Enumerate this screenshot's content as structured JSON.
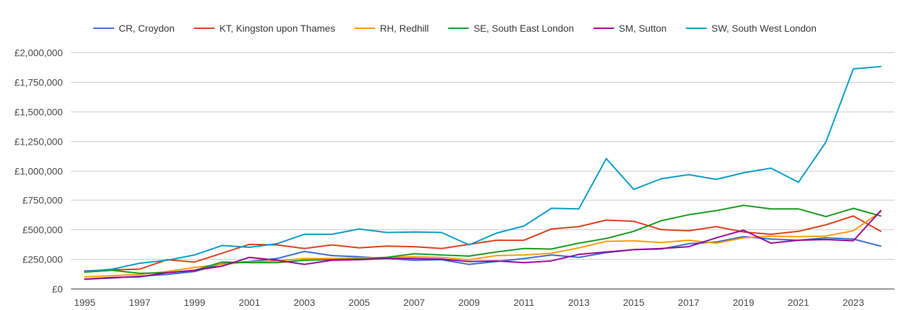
{
  "chart_data": {
    "type": "line",
    "title": "",
    "xlabel": "",
    "ylabel": "",
    "x": [
      1995,
      1996,
      1997,
      1998,
      1999,
      2000,
      2001,
      2002,
      2003,
      2004,
      2005,
      2006,
      2007,
      2008,
      2009,
      2010,
      2011,
      2012,
      2013,
      2014,
      2015,
      2016,
      2017,
      2018,
      2019,
      2020,
      2021,
      2022,
      2023,
      2024
    ],
    "xticks": [
      "1995",
      "1997",
      "1999",
      "2001",
      "2003",
      "2005",
      "2007",
      "2009",
      "2011",
      "2013",
      "2015",
      "2017",
      "2019",
      "2021",
      "2023"
    ],
    "yticks": [
      {
        "value": 0,
        "label": "£0"
      },
      {
        "value": 250000,
        "label": "£250,000"
      },
      {
        "value": 500000,
        "label": "£500,000"
      },
      {
        "value": 750000,
        "label": "£750,000"
      },
      {
        "value": 1000000,
        "label": "£1,000,000"
      },
      {
        "value": 1250000,
        "label": "£1,250,000"
      },
      {
        "value": 1500000,
        "label": "£1,500,000"
      },
      {
        "value": 1750000,
        "label": "£1,750,000"
      },
      {
        "value": 2000000,
        "label": "£2,000,000"
      }
    ],
    "xlim": [
      1995,
      2024
    ],
    "ylim": [
      0,
      2000000
    ],
    "grid": true,
    "legend_position": "top",
    "series": [
      {
        "name": "CR, Croydon",
        "color": "#3366cc",
        "values": [
          80000,
          90000,
          105000,
          120000,
          145000,
          210000,
          230000,
          255000,
          315000,
          280000,
          270000,
          255000,
          240000,
          245000,
          205000,
          230000,
          255000,
          285000,
          265000,
          305000,
          330000,
          335000,
          380000,
          395000,
          440000,
          420000,
          410000,
          430000,
          420000,
          360000
        ]
      },
      {
        "name": "KT, Kingston upon Thames",
        "color": "#dc3912",
        "values": [
          150000,
          160000,
          165000,
          245000,
          225000,
          300000,
          375000,
          370000,
          340000,
          370000,
          345000,
          360000,
          355000,
          340000,
          375000,
          410000,
          410000,
          505000,
          525000,
          580000,
          570000,
          500000,
          490000,
          525000,
          480000,
          460000,
          485000,
          540000,
          615000,
          485000
        ]
      },
      {
        "name": "RH, Redhill",
        "color": "#ff9900",
        "values": [
          100000,
          110000,
          120000,
          145000,
          180000,
          205000,
          225000,
          235000,
          255000,
          255000,
          260000,
          265000,
          270000,
          265000,
          245000,
          280000,
          285000,
          300000,
          345000,
          400000,
          405000,
          390000,
          410000,
          385000,
          430000,
          445000,
          440000,
          445000,
          490000,
          650000
        ]
      },
      {
        "name": "SE, South East London",
        "color": "#109618",
        "values": [
          140000,
          155000,
          130000,
          135000,
          155000,
          225000,
          220000,
          220000,
          240000,
          245000,
          250000,
          265000,
          295000,
          285000,
          275000,
          310000,
          340000,
          335000,
          385000,
          425000,
          485000,
          575000,
          625000,
          660000,
          705000,
          675000,
          675000,
          610000,
          680000,
          615000
        ]
      },
      {
        "name": "SM, Sutton",
        "color": "#990099",
        "values": [
          80000,
          95000,
          100000,
          135000,
          155000,
          190000,
          265000,
          240000,
          205000,
          240000,
          245000,
          255000,
          255000,
          250000,
          230000,
          235000,
          220000,
          235000,
          290000,
          310000,
          330000,
          340000,
          355000,
          430000,
          495000,
          385000,
          410000,
          415000,
          405000,
          660000
        ]
      },
      {
        "name": "SW, South West London",
        "color": "#0099c6",
        "values": [
          145000,
          165000,
          215000,
          240000,
          285000,
          365000,
          350000,
          380000,
          460000,
          460000,
          505000,
          475000,
          480000,
          475000,
          370000,
          470000,
          530000,
          680000,
          675000,
          1100000,
          840000,
          930000,
          965000,
          925000,
          980000,
          1020000,
          900000,
          1240000,
          1860000,
          1880000
        ]
      }
    ]
  }
}
